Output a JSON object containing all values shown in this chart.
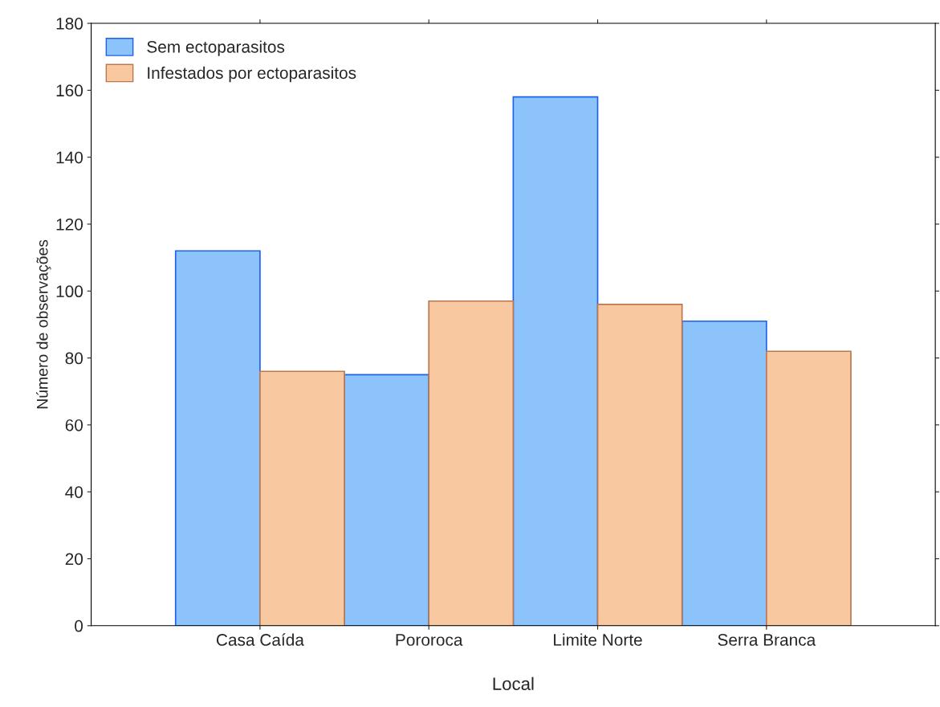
{
  "chart_data": {
    "type": "bar",
    "xlabel": "Local",
    "ylabel": "Número de observações",
    "categories": [
      "Casa Caída",
      "Pororoca",
      "Limite Norte",
      "Serra Branca"
    ],
    "series": [
      {
        "name": "Sem ectoparasitos",
        "color": "#8cc3fa",
        "values": [
          112,
          75,
          158,
          91
        ]
      },
      {
        "name": "Infestados por ectoparasitos",
        "color": "#f8c8a0",
        "values": [
          76,
          97,
          96,
          82
        ]
      }
    ],
    "ylim": [
      0,
      180
    ],
    "yticks": [
      0,
      20,
      40,
      60,
      80,
      100,
      120,
      140,
      160,
      180
    ],
    "grid": false,
    "legend": "top left"
  }
}
